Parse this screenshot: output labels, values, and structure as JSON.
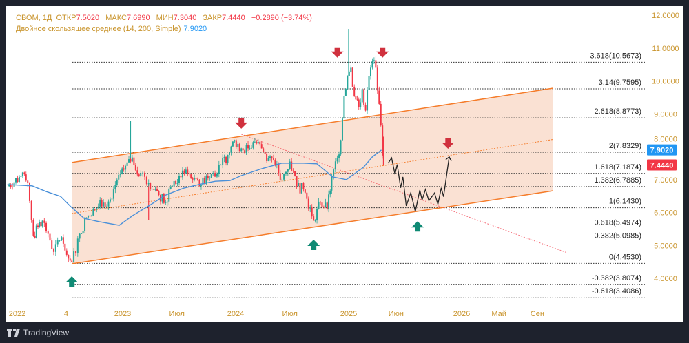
{
  "legend": {
    "symbol": "СВОМ, 1Д",
    "open_label": "ОТКР",
    "open": "7.5020",
    "high_label": "МАКС",
    "high": "7.6990",
    "low_label": "МИН",
    "low": "7.3040",
    "close_label": "ЗАКР",
    "close": "7.4440",
    "change": "−0.2890 (−3.74%)",
    "indicator": "Двойное скользящее среднее (14, 200, Simple)",
    "indicator_value": "7.9020"
  },
  "footer": {
    "brand": "TradingView"
  },
  "colors": {
    "up": "#26a69a",
    "down": "#f23645",
    "ma": "#4a90d9",
    "channel": "#f57c2a",
    "channel_fill": "#f9dccb",
    "axis_text": "#c9942c",
    "projection": "#222222"
  },
  "chart_data": {
    "type": "candlestick",
    "ylim": [
      3.2,
      12.2
    ],
    "yticks": [
      "4.0000",
      "5.0000",
      "6.0000",
      "7.0000",
      "8.0000",
      "9.0000",
      "10.0000",
      "11.0000",
      "12.0000"
    ],
    "ytick_values": [
      4,
      5,
      6,
      7,
      8,
      9,
      10,
      11,
      12
    ],
    "xticks": [
      {
        "t": 2022.0,
        "label": "2022"
      },
      {
        "t": 2022.5,
        "label": "4"
      },
      {
        "t": 2023.0,
        "label": "2023"
      },
      {
        "t": 2023.48,
        "label": "Июл"
      },
      {
        "t": 2024.0,
        "label": "2024"
      },
      {
        "t": 2024.48,
        "label": "Июл"
      },
      {
        "t": 2025.0,
        "label": "2025"
      },
      {
        "t": 2025.42,
        "label": "Июн"
      },
      {
        "t": 2026.0,
        "label": "2026"
      },
      {
        "t": 2026.33,
        "label": "Май"
      },
      {
        "t": 2026.67,
        "label": "Сен"
      }
    ],
    "closes": [
      [
        2021.98,
        6.8
      ],
      [
        2022.1,
        7.1
      ],
      [
        2022.16,
        6.9
      ],
      [
        2022.21,
        5.3
      ],
      [
        2022.25,
        5.55
      ],
      [
        2022.29,
        5.75
      ],
      [
        2022.34,
        5.35
      ],
      [
        2022.39,
        4.8
      ],
      [
        2022.46,
        5.25
      ],
      [
        2022.52,
        4.6
      ],
      [
        2022.55,
        4.5
      ],
      [
        2022.62,
        5.35
      ],
      [
        2022.68,
        5.85
      ],
      [
        2022.74,
        6.1
      ],
      [
        2022.83,
        6.3
      ],
      [
        2022.89,
        6.4
      ],
      [
        2022.95,
        7.0
      ],
      [
        2023.01,
        7.3
      ],
      [
        2023.07,
        7.55
      ],
      [
        2023.1,
        7.45
      ],
      [
        2023.16,
        7.2
      ],
      [
        2023.23,
        6.9
      ],
      [
        2023.29,
        6.7
      ],
      [
        2023.38,
        6.3
      ],
      [
        2023.44,
        6.8
      ],
      [
        2023.5,
        7.1
      ],
      [
        2023.56,
        7.3
      ],
      [
        2023.62,
        7.0
      ],
      [
        2023.68,
        6.8
      ],
      [
        2023.74,
        7.1
      ],
      [
        2023.8,
        7.2
      ],
      [
        2023.87,
        7.45
      ],
      [
        2023.93,
        7.75
      ],
      [
        2023.99,
        8.2
      ],
      [
        2024.05,
        7.95
      ],
      [
        2024.11,
        7.95
      ],
      [
        2024.17,
        8.15
      ],
      [
        2024.23,
        7.95
      ],
      [
        2024.29,
        7.65
      ],
      [
        2024.35,
        7.45
      ],
      [
        2024.41,
        7.0
      ],
      [
        2024.48,
        7.55
      ],
      [
        2024.54,
        6.8
      ],
      [
        2024.6,
        6.7
      ],
      [
        2024.66,
        6.15
      ],
      [
        2024.69,
        5.75
      ],
      [
        2024.75,
        6.3
      ],
      [
        2024.81,
        6.1
      ],
      [
        2024.85,
        7.1
      ],
      [
        2024.9,
        7.65
      ],
      [
        2024.93,
        8.2
      ],
      [
        2024.96,
        9.55
      ],
      [
        2024.99,
        10.15
      ],
      [
        2025.02,
        10.4
      ],
      [
        2025.05,
        9.55
      ],
      [
        2025.09,
        9.2
      ],
      [
        2025.12,
        9.75
      ],
      [
        2025.15,
        9.1
      ],
      [
        2025.18,
        10.15
      ],
      [
        2025.21,
        10.6
      ],
      [
        2025.24,
        10.4
      ],
      [
        2025.27,
        9.3
      ],
      [
        2025.3,
        8.3
      ],
      [
        2025.31,
        7.444
      ]
    ],
    "spikes": [
      [
        2023.07,
        8.78,
        "up"
      ],
      [
        2025.0,
        11.58,
        "up"
      ],
      [
        2023.23,
        5.76,
        "down"
      ]
    ],
    "moving_average": [
      [
        2021.98,
        6.85
      ],
      [
        2022.2,
        6.81
      ],
      [
        2022.32,
        6.64
      ],
      [
        2022.45,
        6.49
      ],
      [
        2022.54,
        6.18
      ],
      [
        2022.66,
        5.82
      ],
      [
        2022.79,
        5.72
      ],
      [
        2022.97,
        5.61
      ],
      [
        2023.09,
        5.91
      ],
      [
        2023.24,
        6.22
      ],
      [
        2023.38,
        6.53
      ],
      [
        2023.54,
        6.74
      ],
      [
        2023.7,
        6.87
      ],
      [
        2023.82,
        6.95
      ],
      [
        2023.95,
        6.97
      ],
      [
        2024.05,
        7.12
      ],
      [
        2024.23,
        7.33
      ],
      [
        2024.41,
        7.5
      ],
      [
        2024.6,
        7.5
      ],
      [
        2024.72,
        7.48
      ],
      [
        2024.86,
        7.08
      ],
      [
        2024.98,
        7.0
      ],
      [
        2025.13,
        7.37
      ],
      [
        2025.21,
        7.69
      ],
      [
        2025.29,
        7.9
      ]
    ],
    "channel": {
      "upper": [
        [
          2022.55,
          7.52
        ],
        [
          2026.81,
          9.78
        ]
      ],
      "middle": [
        [
          2022.55,
          5.97
        ],
        [
          2026.81,
          8.22
        ]
      ],
      "lower": [
        [
          2022.55,
          4.44
        ],
        [
          2026.81,
          6.66
        ]
      ]
    },
    "downtrend_line": [
      [
        2024.05,
        8.38
      ],
      [
        2026.93,
        4.78
      ]
    ],
    "projection": [
      [
        2025.35,
        7.5
      ],
      [
        2025.38,
        7.66
      ],
      [
        2025.41,
        7.16
      ],
      [
        2025.43,
        7.46
      ],
      [
        2025.46,
        6.75
      ],
      [
        2025.48,
        7.08
      ],
      [
        2025.51,
        6.2
      ],
      [
        2025.55,
        6.6
      ],
      [
        2025.59,
        6.03
      ],
      [
        2025.63,
        6.68
      ],
      [
        2025.65,
        6.38
      ],
      [
        2025.68,
        6.7
      ],
      [
        2025.71,
        6.36
      ],
      [
        2025.76,
        6.59
      ],
      [
        2025.79,
        6.25
      ],
      [
        2025.82,
        6.75
      ],
      [
        2025.84,
        6.48
      ],
      [
        2025.89,
        7.69
      ]
    ],
    "sell_arrows": [
      [
        2024.05,
        8.63
      ],
      [
        2024.9,
        10.79
      ],
      [
        2025.3,
        10.79
      ],
      [
        2025.88,
        8.02
      ]
    ],
    "buy_arrows": [
      [
        2022.55,
        3.98
      ],
      [
        2024.69,
        5.09
      ],
      [
        2025.61,
        5.65
      ]
    ],
    "fib_levels": [
      {
        "value": 10.5673,
        "label": "3.618(10.5673)"
      },
      {
        "value": 9.7595,
        "label": "3.14(9.7595)"
      },
      {
        "value": 8.8773,
        "label": "2.618(8.8773)"
      },
      {
        "value": 7.8329,
        "label": "2(7.8329)"
      },
      {
        "value": 7.1874,
        "label": "1.618(7.1874)"
      },
      {
        "value": 6.7885,
        "label": "1.382(6.7885)"
      },
      {
        "value": 6.143,
        "label": "1(6.1430)"
      },
      {
        "value": 5.4974,
        "label": "0.618(5.4974)"
      },
      {
        "value": 5.0985,
        "label": "0.382(5.0985)"
      },
      {
        "value": 4.453,
        "label": "0(4.4530)"
      },
      {
        "value": 3.8074,
        "label": "-0.382(3.8074)"
      },
      {
        "value": 3.4086,
        "label": "-0.618(3.4086)"
      }
    ],
    "last_price": {
      "value": 7.444,
      "label": "7.4440"
    },
    "ma_price": {
      "value": 7.902,
      "label": "7.9020"
    }
  }
}
